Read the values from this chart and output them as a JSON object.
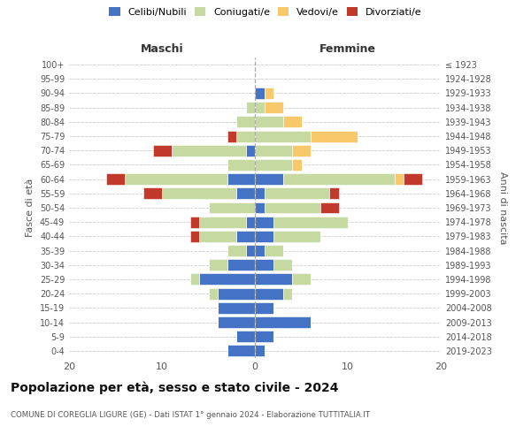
{
  "age_groups": [
    "100+",
    "95-99",
    "90-94",
    "85-89",
    "80-84",
    "75-79",
    "70-74",
    "65-69",
    "60-64",
    "55-59",
    "50-54",
    "45-49",
    "40-44",
    "35-39",
    "30-34",
    "25-29",
    "20-24",
    "15-19",
    "10-14",
    "5-9",
    "0-4"
  ],
  "birth_years": [
    "≤ 1923",
    "1924-1928",
    "1929-1933",
    "1934-1938",
    "1939-1943",
    "1944-1948",
    "1949-1953",
    "1954-1958",
    "1959-1963",
    "1964-1968",
    "1969-1973",
    "1974-1978",
    "1979-1983",
    "1984-1988",
    "1989-1993",
    "1994-1998",
    "1999-2003",
    "2004-2008",
    "2009-2013",
    "2014-2018",
    "2019-2023"
  ],
  "colors": {
    "celibe": "#4472c4",
    "coniugato": "#c5d9a0",
    "vedovo": "#f9c86a",
    "divorziato": "#c0392b"
  },
  "maschi": {
    "celibe": [
      0,
      0,
      0,
      0,
      0,
      0,
      1,
      0,
      3,
      2,
      0,
      1,
      2,
      1,
      3,
      6,
      4,
      4,
      4,
      2,
      3
    ],
    "coniugato": [
      0,
      0,
      0,
      1,
      2,
      2,
      8,
      3,
      11,
      8,
      5,
      5,
      4,
      2,
      2,
      1,
      1,
      0,
      0,
      0,
      0
    ],
    "vedovo": [
      0,
      0,
      0,
      0,
      0,
      0,
      0,
      0,
      0,
      0,
      0,
      0,
      0,
      0,
      0,
      0,
      0,
      0,
      0,
      0,
      0
    ],
    "divorziato": [
      0,
      0,
      0,
      0,
      0,
      1,
      2,
      0,
      2,
      2,
      0,
      1,
      1,
      0,
      0,
      0,
      0,
      0,
      0,
      0,
      0
    ]
  },
  "femmine": {
    "celibe": [
      0,
      0,
      1,
      0,
      0,
      0,
      0,
      0,
      3,
      1,
      1,
      2,
      2,
      1,
      2,
      4,
      3,
      2,
      6,
      2,
      1
    ],
    "coniugato": [
      0,
      0,
      0,
      1,
      3,
      6,
      4,
      4,
      12,
      7,
      6,
      8,
      5,
      2,
      2,
      2,
      1,
      0,
      0,
      0,
      0
    ],
    "vedovo": [
      0,
      0,
      1,
      2,
      2,
      5,
      2,
      1,
      1,
      0,
      0,
      0,
      0,
      0,
      0,
      0,
      0,
      0,
      0,
      0,
      0
    ],
    "divorziato": [
      0,
      0,
      0,
      0,
      0,
      0,
      0,
      0,
      2,
      1,
      2,
      0,
      0,
      0,
      0,
      0,
      0,
      0,
      0,
      0,
      0
    ]
  },
  "xlim": 20,
  "title": "Popolazione per età, sesso e stato civile - 2024",
  "subtitle": "COMUNE DI COREGLIA LIGURE (GE) - Dati ISTAT 1° gennaio 2024 - Elaborazione TUTTITALIA.IT",
  "ylabel_left": "Fasce di età",
  "ylabel_right": "Anni di nascita",
  "header_left": "Maschi",
  "header_right": "Femmine",
  "legend_labels": [
    "Celibi/Nubili",
    "Coniugati/e",
    "Vedovi/e",
    "Divorziati/e"
  ],
  "background_color": "#ffffff",
  "grid_color": "#cccccc"
}
